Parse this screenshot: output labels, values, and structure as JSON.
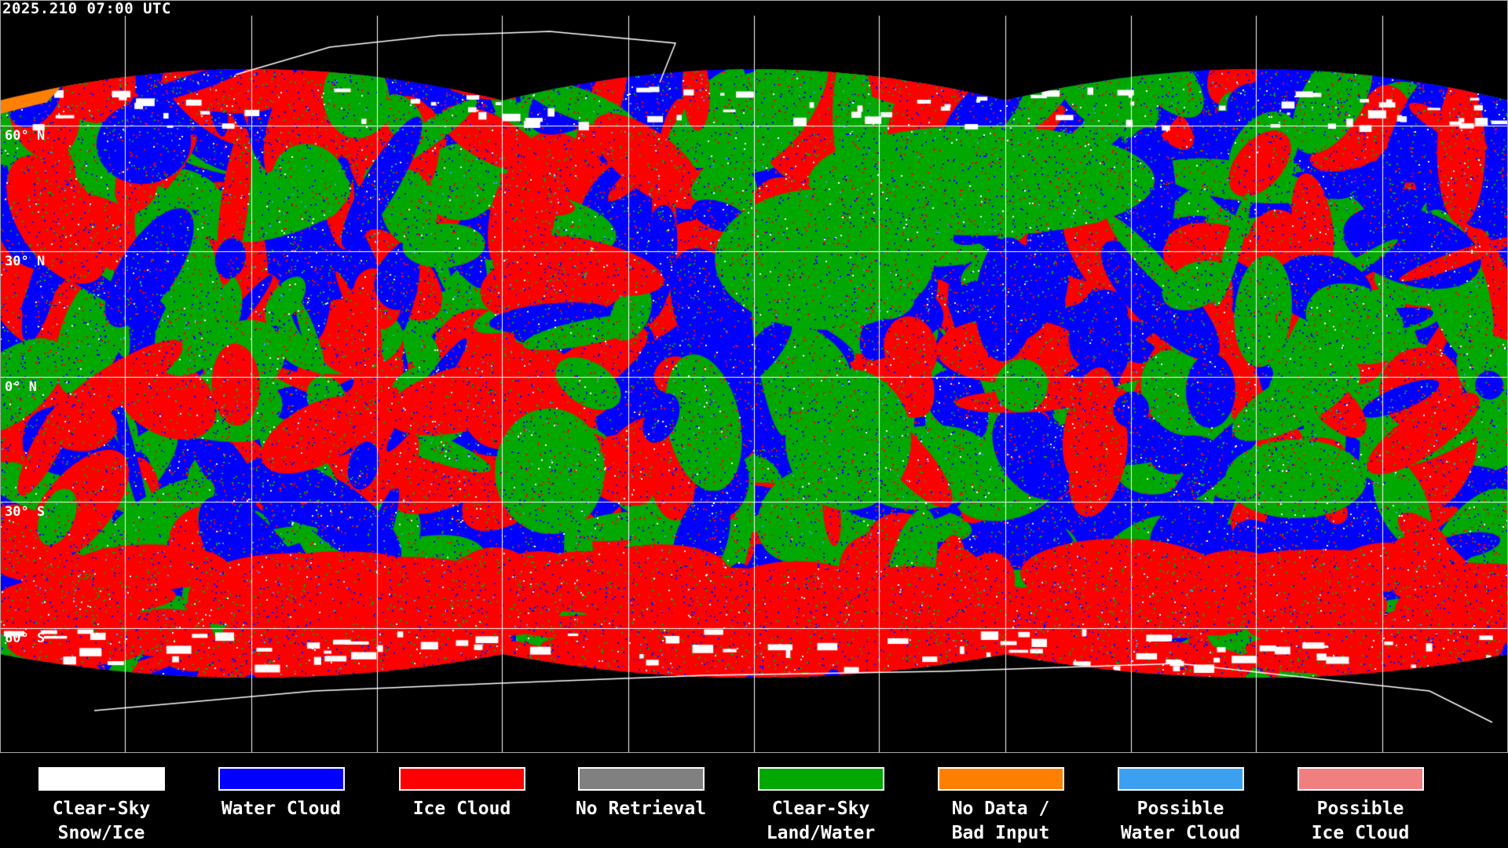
{
  "title": "2025.210 07:00 UTC",
  "latitude_labels": [
    "60° N",
    "30° N",
    "0° N",
    "30° S",
    "60° S"
  ],
  "legend": [
    {
      "label": "Clear-Sky\nSnow/Ice",
      "color": "#ffffff"
    },
    {
      "label": "Water Cloud",
      "color": "#0000ff"
    },
    {
      "label": "Ice Cloud",
      "color": "#ff0000"
    },
    {
      "label": "No Retrieval",
      "color": "#808080"
    },
    {
      "label": "Clear-Sky\nLand/Water",
      "color": "#00a800"
    },
    {
      "label": "No Data /\nBad Input",
      "color": "#ff8000"
    },
    {
      "label": "Possible\nWater Cloud",
      "color": "#3ca0f0"
    },
    {
      "label": "Possible\nIce Cloud",
      "color": "#f08080"
    }
  ]
}
